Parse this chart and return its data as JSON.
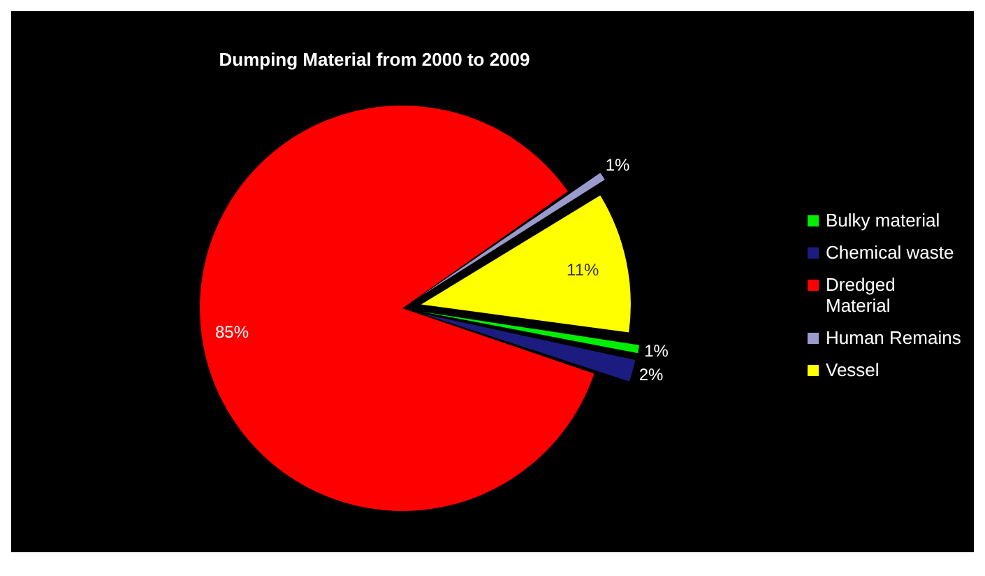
{
  "chart_data": {
    "type": "pie",
    "title": "Dumping Material from 2000 to 2009",
    "categories": [
      "Bulky material",
      "Chemical waste",
      "Dredged Material",
      "Human Remains",
      "Vessel"
    ],
    "values": [
      1,
      2,
      85,
      1,
      11
    ],
    "colors": [
      "#00ee00",
      "#1c1c80",
      "#ff0000",
      "#9a9acc",
      "#ffff00"
    ],
    "value_labels": [
      "1%",
      "2%",
      "85%",
      "1%",
      "11%"
    ],
    "legend": "right"
  }
}
